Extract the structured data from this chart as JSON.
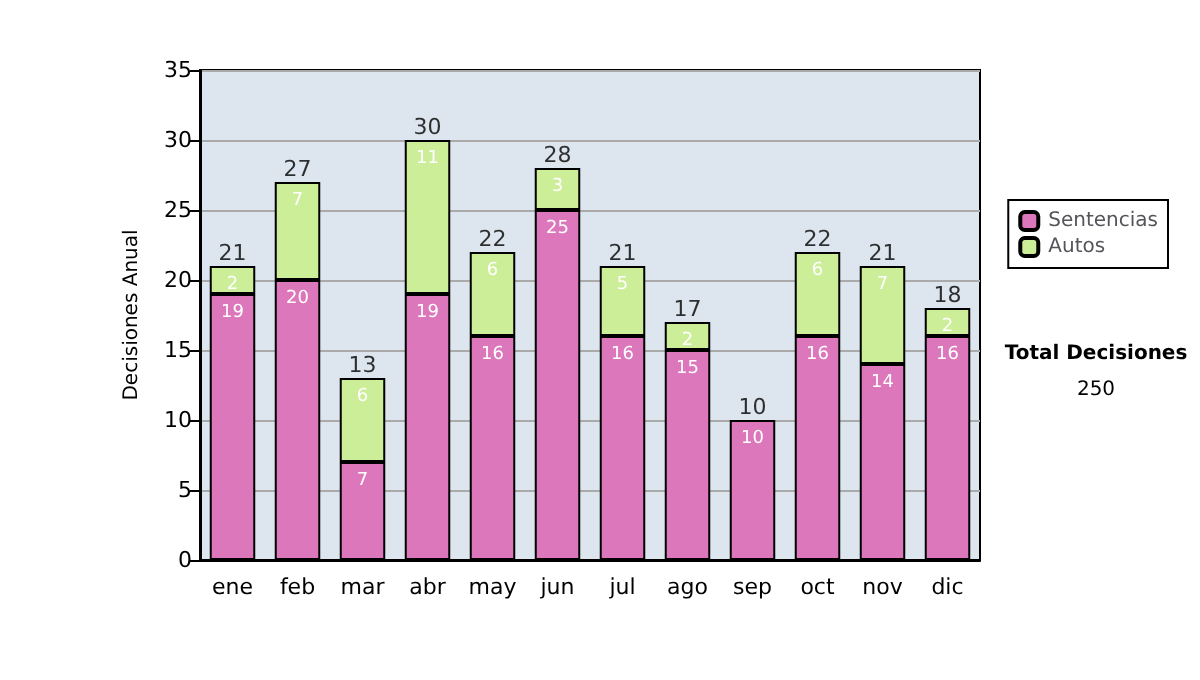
{
  "chart_data": {
    "type": "bar",
    "stacked": true,
    "ylabel": "Decisiones Anual",
    "categories": [
      "ene",
      "feb",
      "mar",
      "abr",
      "may",
      "jun",
      "jul",
      "ago",
      "sep",
      "oct",
      "nov",
      "dic"
    ],
    "series": [
      {
        "name": "Sentencias",
        "color": "#dd77bb",
        "values": [
          19,
          20,
          7,
          19,
          16,
          25,
          16,
          15,
          10,
          16,
          14,
          16
        ],
        "value_labels": [
          "19",
          "20",
          "7",
          "19",
          "16",
          "25",
          "16",
          "15",
          "10",
          "16",
          "14",
          "16"
        ]
      },
      {
        "name": "Autos",
        "color": "#ccee99",
        "values": [
          2,
          7,
          6,
          11,
          6,
          3,
          5,
          2,
          null,
          6,
          7,
          2
        ],
        "value_labels": [
          "2",
          "7",
          "6",
          "11",
          "6",
          "3",
          "5",
          "2",
          null,
          "6",
          "7",
          "2"
        ]
      }
    ],
    "totals": [
      "21",
      "27",
      "13",
      "30",
      "22",
      "28",
      "21",
      "17",
      "10",
      "22",
      "21",
      "18"
    ],
    "ylim": [
      0,
      35
    ],
    "yticks": [
      0,
      5,
      10,
      15,
      20,
      25,
      30,
      35
    ],
    "grid": "y",
    "legend": "right",
    "annotations": [
      "Total Decisiones",
      "250"
    ]
  }
}
